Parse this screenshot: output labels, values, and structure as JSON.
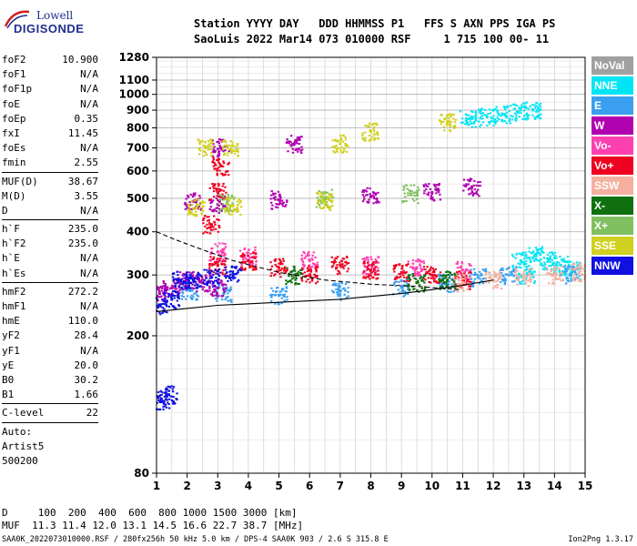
{
  "logo": {
    "line1": "Lowell",
    "line2": "DIGISONDE"
  },
  "header": {
    "line1": "Station YYYY DAY   DDD HHMMSS P1   FFS S AXN PPS IGA PS",
    "line2": "SaoLuis 2022 Mar14 073 010000 RSF     1 715 100 00- 11"
  },
  "params_group1": [
    {
      "k": "foF2",
      "v": "10.900"
    },
    {
      "k": "foF1",
      "v": "N/A"
    },
    {
      "k": "foF1p",
      "v": "N/A"
    },
    {
      "k": "foE",
      "v": "N/A"
    },
    {
      "k": "foEp",
      "v": "0.35"
    },
    {
      "k": "fxI",
      "v": "11.45"
    },
    {
      "k": "foEs",
      "v": "N/A"
    },
    {
      "k": "fmin",
      "v": "2.55"
    }
  ],
  "params_group2": [
    {
      "k": "MUF(D)",
      "v": "38.67"
    },
    {
      "k": "M(D)",
      "v": "3.55"
    },
    {
      "k": "D",
      "v": "N/A"
    }
  ],
  "params_group3": [
    {
      "k": "h`F",
      "v": "235.0"
    },
    {
      "k": "h`F2",
      "v": "235.0"
    },
    {
      "k": "h`E",
      "v": "N/A"
    },
    {
      "k": "h`Es",
      "v": "N/A"
    }
  ],
  "params_group4": [
    {
      "k": "hmF2",
      "v": "272.2"
    },
    {
      "k": "hmF1",
      "v": "N/A"
    },
    {
      "k": "hmE",
      "v": "110.0"
    },
    {
      "k": "yF2",
      "v": "28.4"
    },
    {
      "k": "yF1",
      "v": "N/A"
    },
    {
      "k": "yE",
      "v": "20.0"
    },
    {
      "k": "B0",
      "v": "30.2"
    },
    {
      "k": "B1",
      "v": "1.66"
    }
  ],
  "params_group5": [
    {
      "k": "C-level",
      "v": "22"
    }
  ],
  "autoscale": {
    "line1": "Auto:",
    "line2": "Artist5",
    "line3": "500200"
  },
  "legend": [
    {
      "label": "NoVal",
      "color": "#a0a0a0"
    },
    {
      "label": "NNE",
      "color": "#00e5f5"
    },
    {
      "label": "E",
      "color": "#3a9ff0"
    },
    {
      "label": "W",
      "color": "#b000b0"
    },
    {
      "label": "Vo-",
      "color": "#ff40b0"
    },
    {
      "label": "Vo+",
      "color": "#ee0020"
    },
    {
      "label": "SSW",
      "color": "#f5b0a0"
    },
    {
      "label": "X-",
      "color": "#107010"
    },
    {
      "label": "X+",
      "color": "#80c060"
    },
    {
      "label": "SSE",
      "color": "#d0d020"
    },
    {
      "label": "NNW",
      "color": "#1010e0"
    }
  ],
  "bottom": {
    "d_line": "D     100  200  400  600  800 1000 1500 3000 [km]",
    "muf_line": "MUF  11.3 11.4 12.0 13.1 14.5 16.6 22.7 38.7 [MHz]"
  },
  "footer": {
    "left": "SAA0K_2022073010000.RSF / 280fx256h 50 kHz 5.0 km / DPS-4 SAA0K 903 / 2.6 S 315.8 E",
    "right": "Ion2Png 1.3.17"
  },
  "chart_data": {
    "type": "scatter",
    "xlim": [
      1,
      15
    ],
    "ylim": [
      80,
      1280
    ],
    "x_ticks": [
      1,
      2,
      3,
      4,
      5,
      6,
      7,
      8,
      9,
      10,
      11,
      12,
      13,
      14,
      15
    ],
    "y_ticks": [
      80,
      200,
      300,
      400,
      500,
      600,
      700,
      800,
      900,
      1000,
      1100,
      1280
    ],
    "y_scale": "log",
    "grid": true,
    "series": [
      {
        "name": "NNE",
        "points": [
          [
            11.2,
            850
          ],
          [
            11.8,
            860
          ],
          [
            12.3,
            875
          ],
          [
            12.8,
            890
          ],
          [
            13.3,
            900
          ],
          [
            12.9,
            330
          ],
          [
            13.4,
            345
          ],
          [
            13.8,
            330
          ],
          [
            14.2,
            320
          ],
          [
            14.6,
            310
          ],
          [
            13.1,
            300
          ]
        ]
      },
      {
        "name": "E",
        "points": [
          [
            2.1,
            270
          ],
          [
            3.2,
            265
          ],
          [
            5,
            262
          ],
          [
            7,
            270
          ],
          [
            9,
            276
          ],
          [
            10.5,
            285
          ],
          [
            11.5,
            295
          ],
          [
            12.5,
            300
          ],
          [
            14.5,
            300
          ]
        ]
      },
      {
        "name": "W",
        "points": [
          [
            1.1,
            265
          ],
          [
            1.5,
            275
          ],
          [
            2,
            290
          ],
          [
            2.5,
            285
          ],
          [
            3,
            275
          ],
          [
            2.2,
            490
          ],
          [
            3,
            480
          ],
          [
            5,
            495
          ],
          [
            8,
            505
          ],
          [
            10,
            520
          ],
          [
            11.3,
            540
          ],
          [
            3.1,
            700
          ],
          [
            5.5,
            720
          ]
        ]
      },
      {
        "name": "Vo-",
        "points": [
          [
            3,
            350
          ],
          [
            4,
            340
          ],
          [
            6,
            330
          ],
          [
            8,
            320
          ],
          [
            9.5,
            315
          ],
          [
            11,
            310
          ]
        ]
      },
      {
        "name": "Vo+",
        "points": [
          [
            3,
            320
          ],
          [
            4,
            330
          ],
          [
            5,
            315
          ],
          [
            6,
            300
          ],
          [
            7,
            320
          ],
          [
            8,
            310
          ],
          [
            9,
            305
          ],
          [
            10,
            300
          ],
          [
            11,
            290
          ],
          [
            2.8,
            420
          ],
          [
            3,
            520
          ],
          [
            3.1,
            620
          ]
        ]
      },
      {
        "name": "SSW",
        "points": [
          [
            11,
            285
          ],
          [
            12,
            290
          ],
          [
            13,
            295
          ],
          [
            14,
            300
          ],
          [
            14.8,
            305
          ]
        ]
      },
      {
        "name": "X-",
        "points": [
          [
            9.5,
            285
          ],
          [
            10.5,
            290
          ],
          [
            5.5,
            300
          ]
        ]
      },
      {
        "name": "X+",
        "points": [
          [
            3.3,
            485
          ],
          [
            6.5,
            500
          ],
          [
            9.3,
            515
          ]
        ]
      },
      {
        "name": "SSE",
        "points": [
          [
            2.3,
            470
          ],
          [
            3.5,
            475
          ],
          [
            6.5,
            490
          ],
          [
            10.5,
            830
          ],
          [
            2.6,
            700
          ],
          [
            3.4,
            695
          ],
          [
            7,
            720
          ],
          [
            8,
            780
          ]
        ]
      },
      {
        "name": "NNW",
        "points": [
          [
            1.1,
            245
          ],
          [
            1.5,
            255
          ],
          [
            2.2,
            290
          ],
          [
            2.8,
            295
          ],
          [
            3.5,
            300
          ],
          [
            1.15,
            130
          ],
          [
            1.4,
            135
          ],
          [
            1.8,
            290
          ]
        ]
      }
    ],
    "profile_lines": [
      {
        "name": "virtual-height-trace",
        "points": [
          [
            1,
            235
          ],
          [
            2,
            240
          ],
          [
            3,
            245
          ],
          [
            5,
            250
          ],
          [
            7,
            255
          ],
          [
            9,
            265
          ],
          [
            10,
            272
          ],
          [
            11,
            280
          ],
          [
            12,
            290
          ]
        ]
      },
      {
        "name": "profile-dashed",
        "points": [
          [
            1,
            400
          ],
          [
            1.6,
            380
          ],
          [
            2.5,
            355
          ],
          [
            3.5,
            330
          ],
          [
            5,
            305
          ],
          [
            6.5,
            290
          ],
          [
            8,
            282
          ],
          [
            9.5,
            278
          ],
          [
            10.9,
            272
          ]
        ]
      }
    ]
  }
}
